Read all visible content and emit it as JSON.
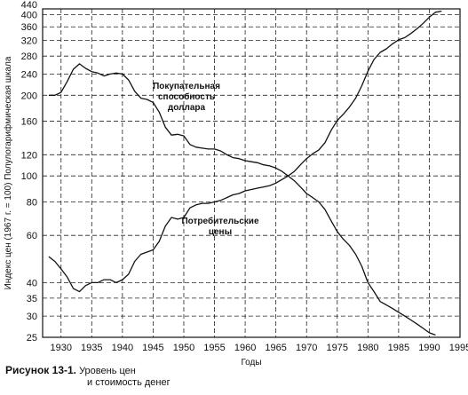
{
  "chart_data": {
    "type": "line",
    "xlabel": "Годы",
    "ylabel": "Индекс цен (1967 г. = 100) Полулогарифмическая шкала",
    "xlim": [
      1927,
      1995
    ],
    "ylim": [
      25,
      420
    ],
    "y_scale": "log",
    "grid": true,
    "x_ticks": [
      "1930",
      "1935",
      "1940",
      "1945",
      "1950",
      "1955",
      "1960",
      "1965",
      "1970",
      "1975",
      "1980",
      "1985",
      "1990",
      "1995"
    ],
    "y_ticks": [
      "25",
      "30",
      "35",
      "40",
      "60",
      "80",
      "100",
      "120",
      "160",
      "200",
      "240",
      "280",
      "320",
      "360",
      "400",
      "440"
    ],
    "series": [
      {
        "name": "Покупательная способность доллара",
        "points": [
          [
            1928,
            200
          ],
          [
            1929,
            200
          ],
          [
            1930,
            205
          ],
          [
            1931,
            225
          ],
          [
            1932,
            250
          ],
          [
            1933,
            262
          ],
          [
            1934,
            252
          ],
          [
            1935,
            245
          ],
          [
            1936,
            242
          ],
          [
            1937,
            236
          ],
          [
            1938,
            240
          ],
          [
            1939,
            242
          ],
          [
            1940,
            240
          ],
          [
            1941,
            228
          ],
          [
            1942,
            207
          ],
          [
            1943,
            195
          ],
          [
            1944,
            193
          ],
          [
            1945,
            188
          ],
          [
            1946,
            173
          ],
          [
            1947,
            152
          ],
          [
            1948,
            142
          ],
          [
            1949,
            143
          ],
          [
            1950,
            141
          ],
          [
            1951,
            131
          ],
          [
            1952,
            128
          ],
          [
            1953,
            127
          ],
          [
            1954,
            126
          ],
          [
            1955,
            126
          ],
          [
            1956,
            124
          ],
          [
            1957,
            120
          ],
          [
            1958,
            117
          ],
          [
            1959,
            116
          ],
          [
            1960,
            114
          ],
          [
            1961,
            113
          ],
          [
            1962,
            112
          ],
          [
            1963,
            110
          ],
          [
            1964,
            109
          ],
          [
            1965,
            107
          ],
          [
            1966,
            104
          ],
          [
            1967,
            100
          ],
          [
            1968,
            96
          ],
          [
            1969,
            91
          ],
          [
            1970,
            86
          ],
          [
            1971,
            83
          ],
          [
            1972,
            80
          ],
          [
            1973,
            75
          ],
          [
            1974,
            68
          ],
          [
            1975,
            62
          ],
          [
            1976,
            58
          ],
          [
            1977,
            55
          ],
          [
            1978,
            51
          ],
          [
            1979,
            46
          ],
          [
            1980,
            40
          ],
          [
            1981,
            37
          ],
          [
            1982,
            34
          ],
          [
            1983,
            33
          ],
          [
            1984,
            32
          ],
          [
            1985,
            31
          ],
          [
            1986,
            30
          ],
          [
            1987,
            29
          ],
          [
            1988,
            28
          ],
          [
            1989,
            27
          ],
          [
            1990,
            26
          ],
          [
            1991,
            25.5
          ]
        ]
      },
      {
        "name": "Потребительские цены",
        "points": [
          [
            1928,
            50
          ],
          [
            1929,
            48
          ],
          [
            1930,
            45
          ],
          [
            1931,
            42
          ],
          [
            1932,
            38
          ],
          [
            1933,
            37
          ],
          [
            1934,
            39
          ],
          [
            1935,
            40
          ],
          [
            1936,
            40
          ],
          [
            1937,
            41
          ],
          [
            1938,
            41
          ],
          [
            1939,
            40
          ],
          [
            1940,
            41
          ],
          [
            1941,
            43
          ],
          [
            1942,
            48
          ],
          [
            1943,
            51
          ],
          [
            1944,
            52
          ],
          [
            1945,
            53
          ],
          [
            1946,
            57
          ],
          [
            1947,
            65
          ],
          [
            1948,
            70
          ],
          [
            1949,
            69
          ],
          [
            1950,
            70
          ],
          [
            1951,
            76
          ],
          [
            1952,
            78
          ],
          [
            1953,
            79
          ],
          [
            1954,
            79
          ],
          [
            1955,
            80
          ],
          [
            1956,
            81
          ],
          [
            1957,
            83
          ],
          [
            1958,
            85
          ],
          [
            1959,
            86
          ],
          [
            1960,
            88
          ],
          [
            1961,
            89
          ],
          [
            1962,
            90
          ],
          [
            1963,
            91
          ],
          [
            1964,
            92
          ],
          [
            1965,
            94
          ],
          [
            1966,
            97
          ],
          [
            1967,
            100
          ],
          [
            1968,
            104
          ],
          [
            1969,
            110
          ],
          [
            1970,
            116
          ],
          [
            1971,
            121
          ],
          [
            1972,
            125
          ],
          [
            1973,
            133
          ],
          [
            1974,
            148
          ],
          [
            1975,
            161
          ],
          [
            1976,
            170
          ],
          [
            1977,
            181
          ],
          [
            1978,
            195
          ],
          [
            1979,
            217
          ],
          [
            1980,
            246
          ],
          [
            1981,
            272
          ],
          [
            1982,
            289
          ],
          [
            1983,
            298
          ],
          [
            1984,
            311
          ],
          [
            1985,
            322
          ],
          [
            1986,
            328
          ],
          [
            1987,
            340
          ],
          [
            1988,
            354
          ],
          [
            1989,
            371
          ],
          [
            1990,
            391
          ],
          [
            1991,
            408
          ],
          [
            1992,
            412
          ]
        ]
      }
    ],
    "annotations": [
      {
        "lines": [
          "Покупательная",
          "способность",
          "доллара"
        ]
      },
      {
        "lines": [
          "Потребительские",
          "цены"
        ]
      }
    ]
  },
  "caption": {
    "figure": "Рисунок 13-1.",
    "line1": "Уровень цен",
    "line2": "и стоимость денег"
  }
}
